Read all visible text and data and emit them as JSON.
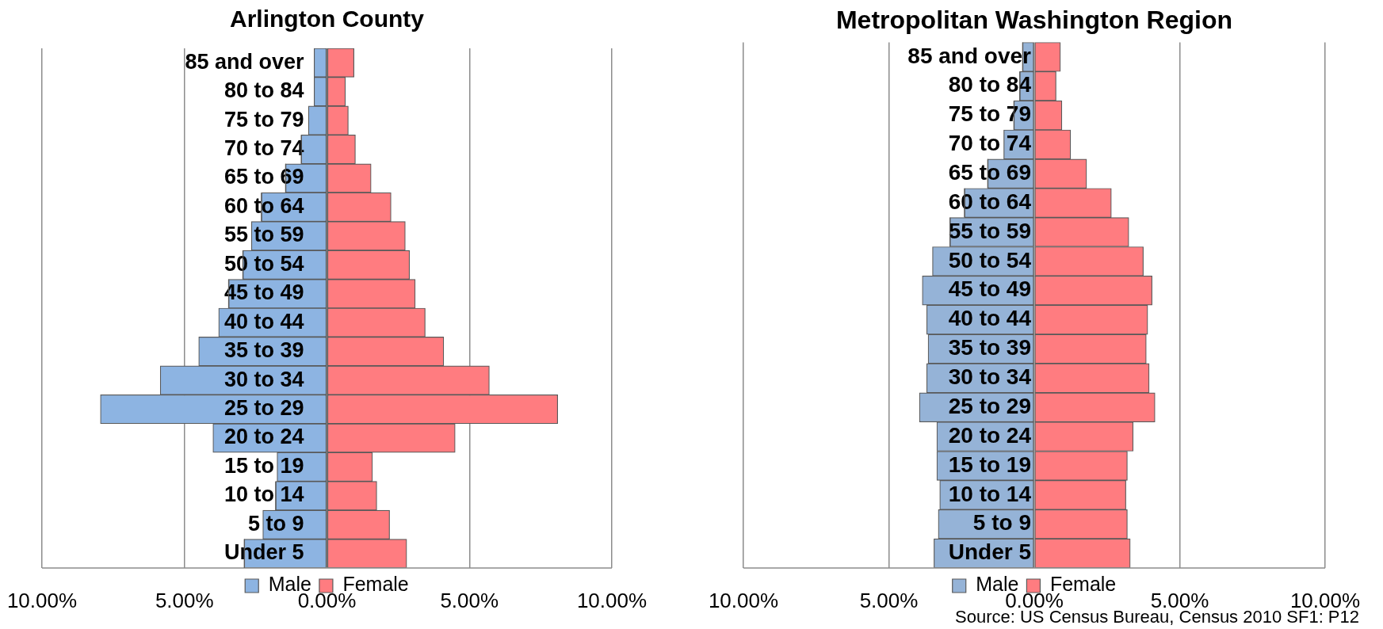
{
  "chart_data": [
    {
      "type": "bar",
      "orientation": "horizontal",
      "stacked": true,
      "title": "Arlington County",
      "categories": [
        "85 and over",
        "80 to 84",
        "75 to 79",
        "70 to 74",
        "65 to 69",
        "60 to 64",
        "55 to 59",
        "50 to 54",
        "45 to 49",
        "40 to 44",
        "35 to 39",
        "30 to 34",
        "25 to 29",
        "20 to 24",
        "15 to 19",
        "10 to 14",
        "5 to 9",
        "Under 5"
      ],
      "series": [
        {
          "name": "Male",
          "color": "#8db4e2",
          "values": [
            -0.45,
            -0.45,
            -0.65,
            -0.9,
            -1.45,
            -2.3,
            -2.65,
            -2.95,
            -3.45,
            -3.8,
            -4.5,
            -5.85,
            -7.95,
            -4.0,
            -1.75,
            -1.8,
            -2.25,
            -2.9
          ]
        },
        {
          "name": "Female",
          "color": "#ff7c80",
          "values": [
            0.95,
            0.65,
            0.75,
            1.0,
            1.55,
            2.25,
            2.75,
            2.9,
            3.1,
            3.45,
            4.1,
            5.7,
            8.1,
            4.5,
            1.6,
            1.75,
            2.2,
            2.8
          ]
        }
      ],
      "xlim": [
        -10,
        10
      ],
      "xticks": [
        {
          "value": -10,
          "label": "10.00%"
        },
        {
          "value": -5,
          "label": "5.00%"
        },
        {
          "value": 0,
          "label": "0.00%"
        },
        {
          "value": 5,
          "label": "5.00%"
        },
        {
          "value": 10,
          "label": "10.00%"
        }
      ],
      "grid": "x",
      "legend": "bottom"
    },
    {
      "type": "bar",
      "orientation": "horizontal",
      "stacked": true,
      "title": "Metropolitan Washington Region",
      "categories": [
        "85 and over",
        "80 to 84",
        "75 to 79",
        "70 to 74",
        "65 to 69",
        "60 to 64",
        "55 to 59",
        "50 to 54",
        "45 to 49",
        "40 to 44",
        "35 to 39",
        "30 to 34",
        "25 to 29",
        "20 to 24",
        "15 to 19",
        "10 to 14",
        "5 to 9",
        "Under 5"
      ],
      "series": [
        {
          "name": "Male",
          "color": "#95b3d7",
          "values": [
            -0.4,
            -0.5,
            -0.7,
            -1.05,
            -1.6,
            -2.4,
            -2.9,
            -3.5,
            -3.85,
            -3.7,
            -3.65,
            -3.7,
            -3.95,
            -3.35,
            -3.35,
            -3.25,
            -3.3,
            -3.45
          ]
        },
        {
          "name": "Female",
          "color": "#ff7c80",
          "values": [
            0.9,
            0.75,
            0.95,
            1.25,
            1.8,
            2.65,
            3.25,
            3.75,
            4.05,
            3.9,
            3.85,
            3.95,
            4.15,
            3.4,
            3.2,
            3.15,
            3.2,
            3.3
          ]
        }
      ],
      "xlim": [
        -10,
        10
      ],
      "xticks": [
        {
          "value": -10,
          "label": "10.00%"
        },
        {
          "value": -5,
          "label": "5.00%"
        },
        {
          "value": 0,
          "label": "0.00%"
        },
        {
          "value": 5,
          "label": "5.00%"
        },
        {
          "value": 10,
          "label": "10.00%"
        }
      ],
      "grid": "x",
      "legend": "bottom",
      "annotations": [
        "Source: US Census Bureau, Census 2010 SF1: P12"
      ]
    }
  ]
}
